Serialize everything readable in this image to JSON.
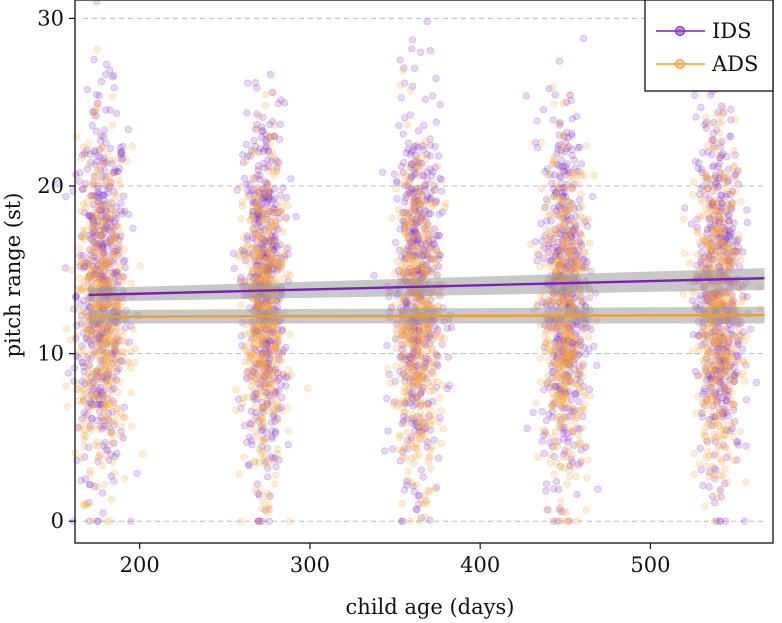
{
  "chart_data": {
    "type": "scatter",
    "xlabel": "child age (days)",
    "ylabel": "pitch range (st)",
    "xlim": [
      162,
      572
    ],
    "ylim": [
      -1.3,
      31.1
    ],
    "x_ticks": [
      200,
      300,
      400,
      500
    ],
    "y_ticks": [
      0,
      10,
      20,
      30
    ],
    "x_tick_labels": [
      "200",
      "300",
      "400",
      "500"
    ],
    "y_tick_labels": [
      "0",
      "10",
      "20",
      "30"
    ],
    "grid": "horizontal dashed at y ticks",
    "legend_placement": "top-right",
    "point_clusters_days": [
      {
        "center": 178,
        "spread": 10
      },
      {
        "center": 273,
        "spread": 8
      },
      {
        "center": 363,
        "spread": 9
      },
      {
        "center": 450,
        "spread": 9
      },
      {
        "center": 540,
        "spread": 9
      }
    ],
    "series": [
      {
        "name": "IDS",
        "color": "#7a1fb8",
        "point_color": "#8e3fd0",
        "trend": {
          "x": [
            170,
            567
          ],
          "y": [
            13.5,
            14.5
          ]
        },
        "trend_ci": {
          "x": [
            170,
            567
          ],
          "lower": [
            13.1,
            13.8
          ],
          "upper": [
            13.9,
            15.1
          ]
        },
        "pitch_distribution": {
          "mean": 13.8,
          "sd": 5.5,
          "min": 0,
          "max": 31
        }
      },
      {
        "name": "ADS",
        "color": "#f39a2e",
        "point_color": "#f8a94a",
        "trend": {
          "x": [
            170,
            567
          ],
          "y": [
            12.2,
            12.3
          ]
        },
        "trend_ci": {
          "x": [
            170,
            567
          ],
          "lower": [
            11.8,
            11.8
          ],
          "upper": [
            12.6,
            12.8
          ]
        },
        "pitch_distribution": {
          "mean": 12.3,
          "sd": 4.8,
          "min": 0,
          "max": 30
        }
      }
    ]
  }
}
